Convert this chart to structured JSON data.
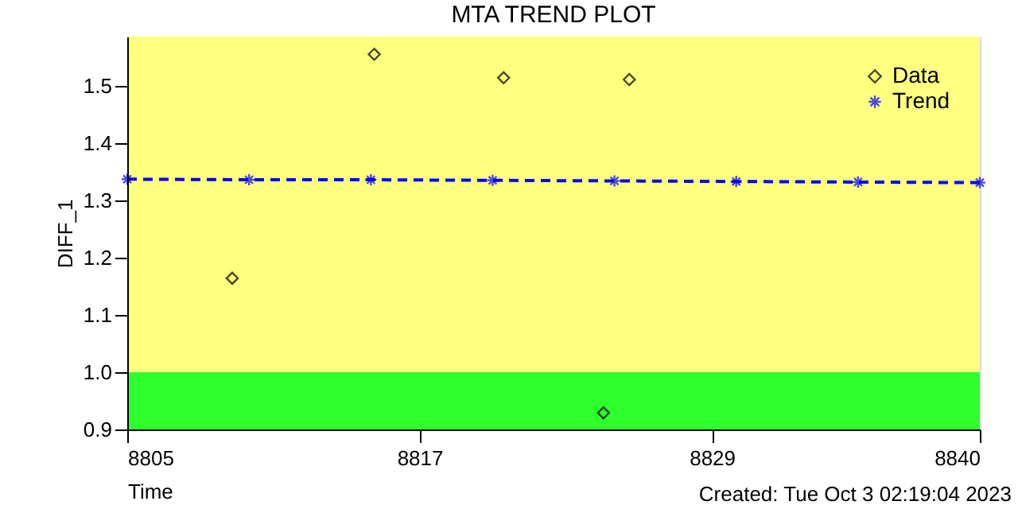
{
  "chart_data": {
    "type": "scatter",
    "title": "MTA TREND PLOT",
    "xlabel": "Time",
    "ylabel": "DIFF_1",
    "annotations": [
      "Created: Tue Oct  3 02:19:04 2023"
    ],
    "xlim": [
      8805,
      8840
    ],
    "xticks": [
      8805,
      8817,
      8829,
      8840
    ],
    "ylim": [
      0.9,
      1.586
    ],
    "yticks": [
      {
        "value": 0.9,
        "label": "0.9"
      },
      1.1,
      1.2,
      1.3,
      1.4,
      1.5,
      {
        "value": 1.0,
        "label": "1.0"
      }
    ],
    "series": [
      {
        "name": "Data",
        "marker": "diamond",
        "color": "#000000",
        "x": [
          8809.31,
          8815.14,
          8820.45,
          8824.55,
          8825.61
        ],
        "values": [
          1.164,
          1.555,
          1.514,
          0.929,
          1.511
        ]
      },
      {
        "name": "Trend",
        "type": "line",
        "marker": "cross",
        "line_style": "dashed",
        "color": "#0000ff",
        "x": [
          8805,
          8810,
          8815,
          8820,
          8825,
          8830,
          8835,
          8840
        ],
        "values": [
          1.337,
          1.336,
          1.336,
          1.335,
          1.334,
          1.333,
          1.332,
          1.331
        ]
      }
    ],
    "bands": [
      {
        "axis": "y",
        "from": 0.9,
        "to": 1.0,
        "color": "#2eff2e"
      },
      {
        "axis": "y",
        "from": 1.0,
        "to": 1.586,
        "color": "#ffff80"
      }
    ],
    "legend": "top right",
    "grid": false
  }
}
